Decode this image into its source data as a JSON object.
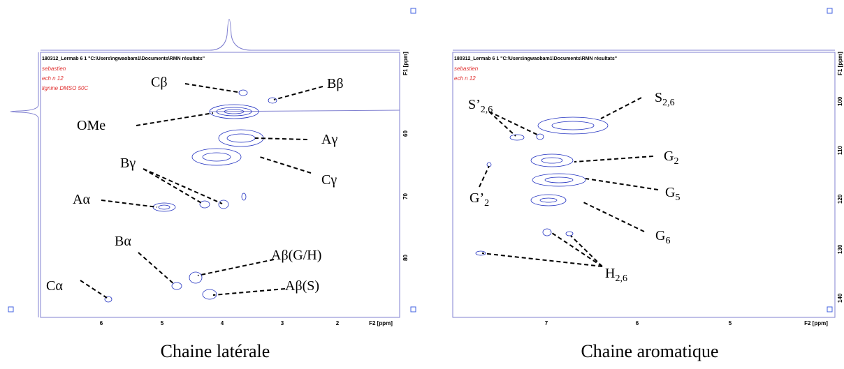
{
  "left_panel": {
    "header": "180312_Lermab 6 1 \"C:\\Users\\ngwaobam1\\Documents\\RMN résultats\"",
    "notes": [
      "sebastien",
      "ech n 12",
      "lignine DMSO 50C"
    ],
    "y_axis_title": "F1 [ppm]",
    "y_ticks": [
      "60",
      "70",
      "80"
    ],
    "x_axis_title": "F2 [ppm]",
    "x_ticks": [
      "6",
      "5",
      "4",
      "3",
      "2"
    ],
    "labels": [
      "Cβ",
      "Bβ",
      "OMe",
      "Aγ",
      "Bγ",
      "Cγ",
      "Aα",
      "Bα",
      "Aβ(G/H)",
      "Aβ(S)",
      "Cα"
    ],
    "caption": "Chaine latérale"
  },
  "right_panel": {
    "header": "180312_Lermab 6 1 \"C:\\Users\\ngwaobam1\\Documents\\RMN résultats\"",
    "notes": [
      "sebastien",
      "ech n 12"
    ],
    "y_axis_title": "F1 [ppm]",
    "y_ticks": [
      "100",
      "110",
      "120",
      "130",
      "140"
    ],
    "x_axis_title": "F2 [ppm]",
    "x_ticks": [
      "7",
      "6",
      "5"
    ],
    "labels": [
      {
        "base": "S’",
        "sub": "2,6"
      },
      {
        "base": "S",
        "sub": "2,6"
      },
      {
        "base": "G",
        "sub": "2"
      },
      {
        "base": "G’",
        "sub": "2"
      },
      {
        "base": "G",
        "sub": "5"
      },
      {
        "base": "G",
        "sub": "6"
      },
      {
        "base": "H",
        "sub": "2,6"
      }
    ],
    "caption": "Chaine aromatique"
  }
}
